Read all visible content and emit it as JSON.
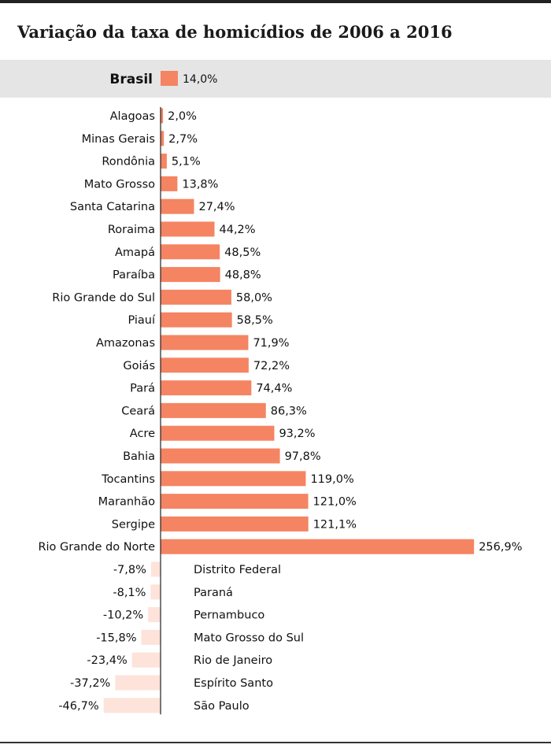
{
  "title": "Variação da taxa de homicídios de 2006 a 2016",
  "colors": {
    "positive": "#f58462",
    "negative": "#fde3da",
    "highlight_band": "#e5e5e5",
    "axis": "#222222"
  },
  "chart_data": {
    "type": "bar",
    "orientation": "horizontal",
    "title": "Variação da taxa de homicídios de 2006 a 2016",
    "highlight": {
      "category": "Brasil",
      "value": 14.0,
      "label": "14,0%"
    },
    "categories": [
      "Alagoas",
      "Minas Gerais",
      "Rondônia",
      "Mato Grosso",
      "Santa Catarina",
      "Roraima",
      "Amapá",
      "Paraíba",
      "Rio Grande do Sul",
      "Piauí",
      "Amazonas",
      "Goiás",
      "Pará",
      "Ceará",
      "Acre",
      "Bahia",
      "Tocantins",
      "Maranhão",
      "Sergipe",
      "Rio Grande do Norte",
      "Distrito Federal",
      "Paraná",
      "Pernambuco",
      "Mato Grosso do Sul",
      "Rio de Janeiro",
      "Espírito Santo",
      "São Paulo"
    ],
    "values": [
      2.0,
      2.7,
      5.1,
      13.8,
      27.4,
      44.2,
      48.5,
      48.8,
      58.0,
      58.5,
      71.9,
      72.2,
      74.4,
      86.3,
      93.2,
      97.8,
      119.0,
      121.0,
      121.1,
      256.9,
      -7.8,
      -8.1,
      -10.2,
      -15.8,
      -23.4,
      -37.2,
      -46.7
    ],
    "labels": [
      "2,0%",
      "2,7%",
      "5,1%",
      "13,8%",
      "27,4%",
      "44,2%",
      "48,5%",
      "48,8%",
      "58,0%",
      "58,5%",
      "71,9%",
      "72,2%",
      "74,4%",
      "86,3%",
      "93,2%",
      "97,8%",
      "119,0%",
      "121,0%",
      "121,1%",
      "256,9%",
      "-7,8%",
      "-8,1%",
      "-10,2%",
      "-15,8%",
      "-23,4%",
      "-37,2%",
      "-46,7%"
    ],
    "grid": false,
    "legend": "none"
  }
}
